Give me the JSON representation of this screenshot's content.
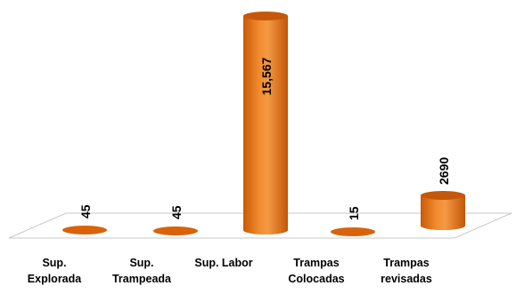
{
  "chart_data": {
    "type": "bar",
    "style": "3d-cylinder",
    "categories": [
      [
        "Sup.",
        "Explorada"
      ],
      [
        "Sup.",
        "Trampeada"
      ],
      [
        "Sup. Labor"
      ],
      [
        "Trampas",
        "Colocadas"
      ],
      [
        "Trampas",
        "revisadas"
      ]
    ],
    "values": [
      45,
      45,
      15567,
      15,
      2690
    ],
    "value_labels": [
      "45",
      "45",
      "15,567",
      "15",
      "2690"
    ],
    "ylim": [
      0,
      15567
    ],
    "axis_scale": "broken (tall bar clipped)",
    "grid": false,
    "legend": "none",
    "colors": {
      "bar_side": "#e8700f",
      "bar_top": "#c4570a",
      "bar_highlight": "#f7a35a",
      "floor": "#ffffff",
      "floor_edge": "#c8c8c8"
    }
  }
}
